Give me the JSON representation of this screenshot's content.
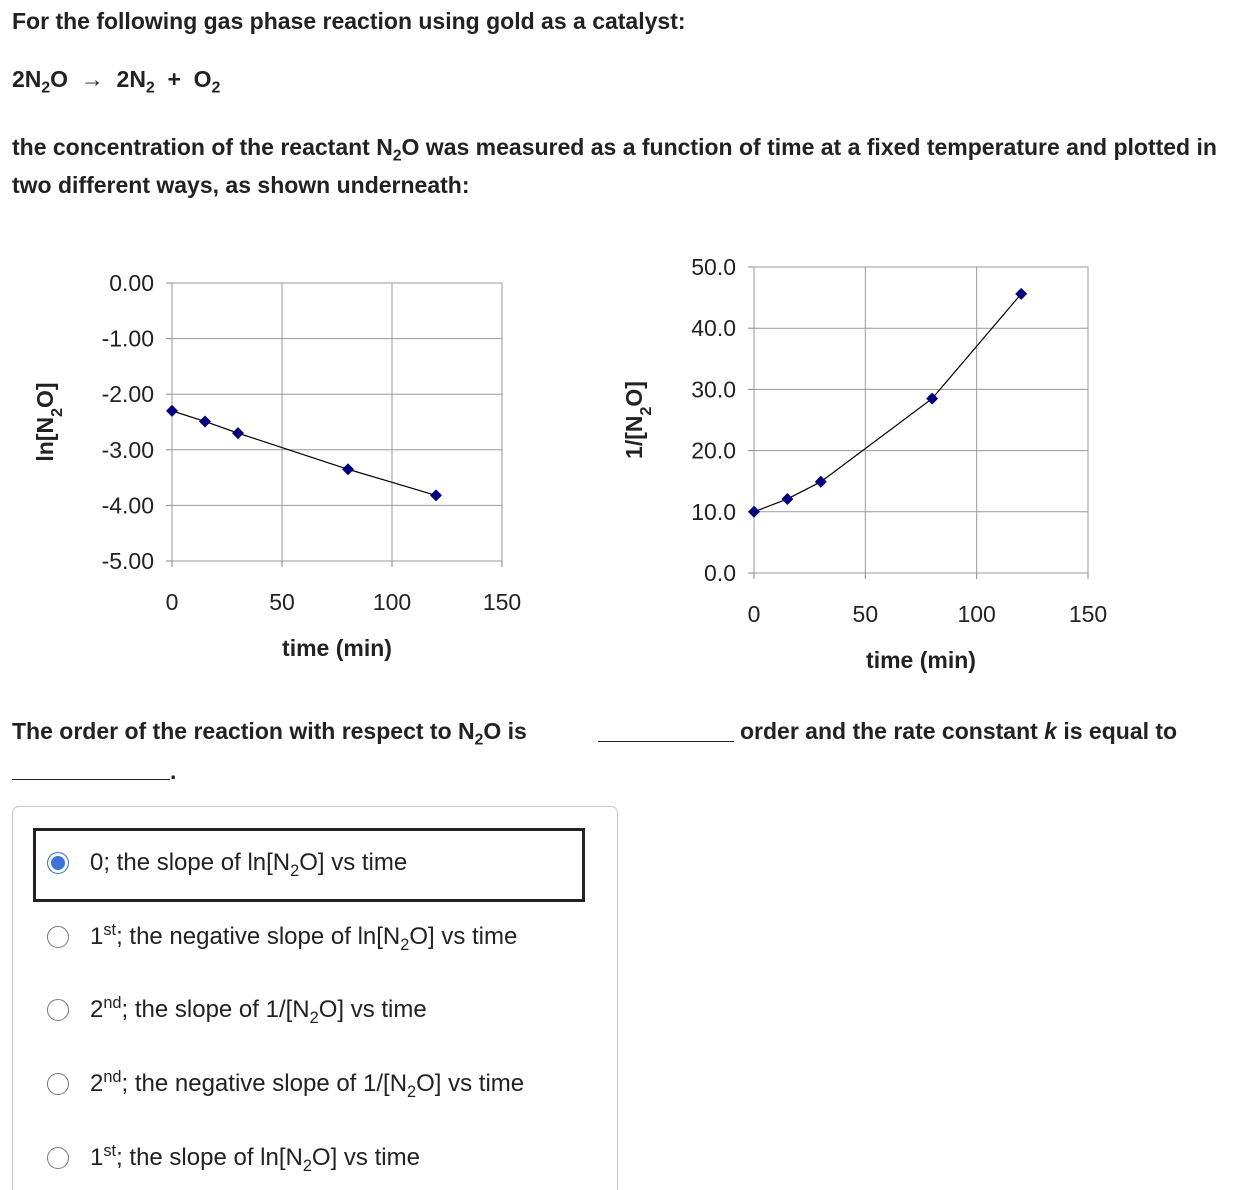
{
  "intro": "For the following gas phase reaction using gold as a catalyst:",
  "equation": [
    {
      "t": "2N"
    },
    {
      "sub": "2"
    },
    {
      "t": "O  →  2N"
    },
    {
      "sub": "2"
    },
    {
      "t": "  +  O"
    },
    {
      "sub": "2"
    }
  ],
  "description": [
    {
      "t": "the concentration of the reactant N"
    },
    {
      "sub": "2"
    },
    {
      "t": "O was measured as a function of time at a fixed temperature and plotted in two different ways, as shown underneath:"
    }
  ],
  "chart_data": [
    {
      "type": "line",
      "x": [
        0,
        15,
        30,
        80,
        120
      ],
      "values": [
        -2.3,
        -2.49,
        -2.7,
        -3.35,
        -3.82
      ],
      "color": "#00007f",
      "xlabel": "time (min)",
      "ylabel": [
        {
          "t": "ln[N"
        },
        {
          "sub": "2"
        },
        {
          "t": "O]"
        }
      ],
      "xlim": [
        0,
        150
      ],
      "ylim": [
        -5,
        0
      ],
      "xticks": [
        0,
        50,
        100,
        150
      ],
      "yticks": [
        {
          "value": 0,
          "label": "0.00"
        },
        {
          "value": -1,
          "label": "-1.00"
        },
        {
          "value": -2,
          "label": "-2.00"
        },
        {
          "value": -3,
          "label": "-3.00"
        },
        {
          "value": -4,
          "label": "-4.00"
        },
        {
          "value": -5,
          "label": "-5.00"
        }
      ],
      "grid": true
    },
    {
      "type": "line",
      "x": [
        0,
        15,
        30,
        80,
        120
      ],
      "values": [
        10.0,
        12.1,
        14.9,
        28.5,
        45.6
      ],
      "color": "#00007f",
      "xlabel": "time (min)",
      "ylabel": [
        {
          "t": "1/[N"
        },
        {
          "sub": "2"
        },
        {
          "t": "O]"
        }
      ],
      "xlim": [
        0,
        150
      ],
      "ylim": [
        0,
        50
      ],
      "xticks": [
        0,
        50,
        100,
        150
      ],
      "yticks": [
        {
          "value": 0,
          "label": "0.0"
        },
        {
          "value": 10,
          "label": "10.0"
        },
        {
          "value": 20,
          "label": "20.0"
        },
        {
          "value": 30,
          "label": "30.0"
        },
        {
          "value": 40,
          "label": "40.0"
        },
        {
          "value": 50,
          "label": "50.0"
        }
      ],
      "grid": true
    }
  ],
  "question": {
    "part1": [
      {
        "t": "The order of the reaction with respect to N"
      },
      {
        "sub": "2"
      },
      {
        "t": "O is"
      }
    ],
    "part2": [
      {
        "t": "order and the rate constant "
      },
      {
        "i": "k"
      },
      {
        "t": " is equal to"
      }
    ],
    "end": "."
  },
  "options": [
    [
      {
        "t": "0; the slope of ln[N"
      },
      {
        "sub": "2"
      },
      {
        "t": "O] vs time"
      }
    ],
    [
      {
        "t": "1"
      },
      {
        "sup": "st"
      },
      {
        "t": "; the negative slope of ln[N"
      },
      {
        "sub": "2"
      },
      {
        "t": "O] vs time"
      }
    ],
    [
      {
        "t": "2"
      },
      {
        "sup": "nd"
      },
      {
        "t": "; the slope of 1/[N"
      },
      {
        "sub": "2"
      },
      {
        "t": "O] vs time"
      }
    ],
    [
      {
        "t": "2"
      },
      {
        "sup": "nd"
      },
      {
        "t": "; the negative slope of 1/[N"
      },
      {
        "sub": "2"
      },
      {
        "t": "O] vs time"
      }
    ],
    [
      {
        "t": "1"
      },
      {
        "sup": "st"
      },
      {
        "t": "; the slope of ln[N"
      },
      {
        "sub": "2"
      },
      {
        "t": "O] vs time"
      }
    ]
  ],
  "selected": 0
}
